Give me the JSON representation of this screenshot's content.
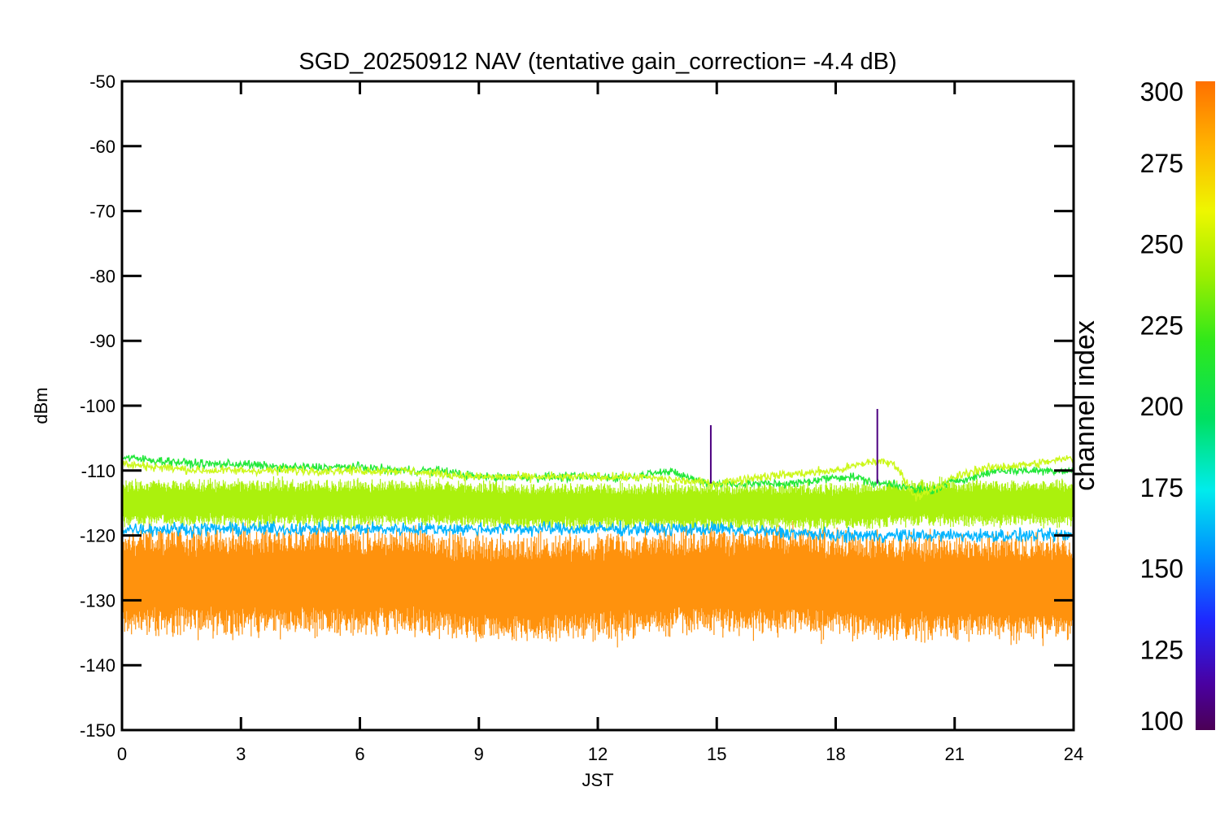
{
  "chart_data": {
    "type": "line",
    "title": "SGD_20250912 NAV (tentative gain_correction= -4.4 dB)",
    "xlabel": "JST",
    "ylabel": "dBm",
    "xlim": [
      0,
      24
    ],
    "ylim": [
      -150,
      -50
    ],
    "xticks": [
      "0",
      "3",
      "6",
      "9",
      "12",
      "15",
      "18",
      "21",
      "24"
    ],
    "yticks": [
      "-50",
      "-60",
      "-70",
      "-80",
      "-90",
      "-100",
      "-110",
      "-120",
      "-130",
      "-140",
      "-150"
    ],
    "colorbar": {
      "label": "channel index",
      "range": [
        100,
        300
      ],
      "ticks": [
        "300",
        "275",
        "250",
        "225",
        "200",
        "175",
        "150",
        "125",
        "100"
      ]
    },
    "series": [
      {
        "name": "channels ~280-300 (orange band)",
        "color": "#ff8c00",
        "x": [
          0,
          1,
          2,
          3,
          4,
          5,
          6,
          7,
          8,
          9,
          10,
          11,
          12,
          13,
          14,
          15,
          16,
          17,
          18,
          19,
          20,
          21,
          22,
          23,
          24
        ],
        "y": [
          -127,
          -127,
          -127,
          -127,
          -127,
          -127,
          -127,
          -127,
          -127.5,
          -128,
          -128,
          -128,
          -128,
          -127.5,
          -127,
          -127,
          -127,
          -127,
          -127.5,
          -128,
          -128,
          -128,
          -128,
          -128,
          -128
        ],
        "spread": 8
      },
      {
        "name": "channels ~255-265 (yellow-green band)",
        "color": "#a6f000",
        "x": [
          0,
          2,
          4,
          6,
          8,
          10,
          12,
          14,
          16,
          18,
          20,
          22,
          24
        ],
        "y": [
          -115,
          -115,
          -115,
          -115,
          -115,
          -115.5,
          -115.5,
          -115.5,
          -115.5,
          -115.5,
          -115,
          -115,
          -115
        ],
        "spread": 3.5
      },
      {
        "name": "channel ~240 (green trace)",
        "color": "#22e83a",
        "x": [
          0,
          1,
          2,
          3,
          4,
          5,
          6,
          7,
          8,
          8.5,
          9,
          10,
          11,
          12,
          13,
          13.5,
          14,
          14.5,
          15,
          15.5,
          16,
          17,
          18,
          18.5,
          19,
          19.5,
          20,
          20.5,
          21,
          21.5,
          22,
          23,
          24
        ],
        "y": [
          -108,
          -108.5,
          -109,
          -109,
          -109.5,
          -109.5,
          -109.5,
          -110,
          -110,
          -110.5,
          -111,
          -111,
          -111,
          -111,
          -111,
          -110,
          -110.5,
          -111.5,
          -112,
          -112,
          -112,
          -112,
          -111,
          -111,
          -112,
          -112,
          -113,
          -113,
          -111.5,
          -111,
          -110,
          -110,
          -110
        ],
        "spread": 1
      },
      {
        "name": "channel ~265 (yellow trace)",
        "color": "#ccf81a",
        "x": [
          0,
          1,
          2,
          3,
          4,
          5,
          6,
          7,
          8,
          9,
          10,
          11,
          12,
          13,
          14,
          15,
          16,
          17,
          18,
          19,
          19.5,
          20,
          20.5,
          21,
          21.5,
          22,
          23,
          24
        ],
        "y": [
          -109,
          -109.5,
          -110,
          -110,
          -110,
          -110,
          -110,
          -110,
          -110.5,
          -111,
          -111,
          -111,
          -111,
          -111,
          -111.5,
          -112,
          -111,
          -110.5,
          -110,
          -108.5,
          -109,
          -114,
          -113,
          -111,
          -110,
          -109.5,
          -109,
          -108
        ],
        "spread": 1
      },
      {
        "name": "channels ~150-175 (blue/cyan scattered)",
        "color": "#00b4ff",
        "x": [
          0,
          3,
          6,
          9,
          12,
          15,
          18,
          21,
          24
        ],
        "y": [
          -119,
          -119,
          -119,
          -119,
          -119,
          -119,
          -120,
          -120,
          -120
        ],
        "spread": 1.5
      },
      {
        "name": "channel ~110 (purple spikes)",
        "color": "#4c0080",
        "x": [
          14.85,
          19.05
        ],
        "y": [
          -103,
          -100.5
        ]
      }
    ]
  }
}
